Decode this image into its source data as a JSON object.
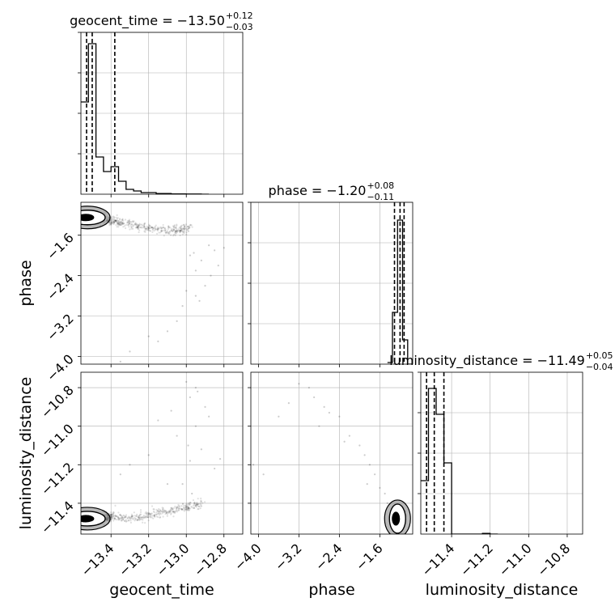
{
  "chart_data": {
    "type": "corner",
    "parameters": [
      "geocent_time",
      "phase",
      "luminosity_distance"
    ],
    "titles": [
      {
        "param": "geocent_time",
        "prefix": "geocent_time = −13.50",
        "plus": "+0.12",
        "minus": "−0.03"
      },
      {
        "param": "phase",
        "prefix": "phase = −1.20",
        "plus": "+0.08",
        "minus": "−0.11"
      },
      {
        "param": "luminosity_distance",
        "prefix": "luminosity_distance = −11.49",
        "plus": "+0.05",
        "minus": "−0.04"
      }
    ],
    "axes": {
      "geocent_time": {
        "lim": [
          -13.56,
          -12.7
        ],
        "ticks": [
          -13.4,
          -13.2,
          -13.0,
          -12.8
        ],
        "tick_labels": [
          "−13.4",
          "−13.2",
          "−13.0",
          "−12.8"
        ]
      },
      "phase": {
        "lim": [
          -4.15,
          -0.95
        ],
        "ticks": [
          -4.0,
          -3.2,
          -2.4,
          -1.6
        ],
        "tick_labels": [
          "−4.0",
          "−3.2",
          "−2.4",
          "−1.6"
        ]
      },
      "luminosity_distance": {
        "lim": [
          -11.56,
          -10.72
        ],
        "ticks": [
          -11.4,
          -11.2,
          -11.0,
          -10.8
        ],
        "tick_labels": [
          "−11.4",
          "−11.2",
          "−11.0",
          "−10.8"
        ]
      }
    },
    "hist_ticks": {
      "geocent_time": [
        0.25,
        0.5,
        0.75,
        1.0
      ],
      "phase": [
        0.25,
        0.5,
        0.75,
        1.0
      ],
      "luminosity_distance": [
        0.25,
        0.5,
        0.75,
        1.0
      ]
    },
    "histograms": {
      "geocent_time": {
        "edges": [
          -13.56,
          -13.52,
          -13.48,
          -13.44,
          -13.4,
          -13.36,
          -13.32,
          -13.28,
          -13.24,
          -13.2,
          -13.16,
          -13.12,
          -13.08,
          -13.04,
          -13.0,
          -12.96,
          -12.92,
          -12.88
        ],
        "counts": [
          0.57,
          0.93,
          0.23,
          0.14,
          0.17,
          0.08,
          0.03,
          0.02,
          0.01,
          0.01,
          0.004,
          0.004,
          0.002,
          0.002,
          0.001,
          0.001,
          0.0
        ]
      },
      "phase": {
        "edges": [
          -1.45,
          -1.35,
          -1.25,
          -1.15,
          -1.05,
          -0.95
        ],
        "counts": [
          0.01,
          0.32,
          0.89,
          0.15,
          0.0
        ]
      },
      "luminosity_distance": {
        "edges": [
          -11.56,
          -11.52,
          -11.48,
          -11.44,
          -11.4,
          -11.36,
          -11.32,
          -11.28,
          -11.24,
          -11.2,
          -11.16
        ],
        "counts": [
          0.33,
          0.9,
          0.74,
          0.44,
          0.0,
          0.0,
          0.0,
          0.0,
          0.004,
          0.0
        ]
      }
    },
    "quantiles": {
      "geocent_time": [
        -13.53,
        -13.5,
        -13.38
      ],
      "phase": [
        -1.31,
        -1.2,
        -1.12
      ],
      "luminosity_distance": [
        -11.53,
        -11.49,
        -11.44
      ]
    },
    "pairs": [
      {
        "x": "geocent_time",
        "y": "phase",
        "ridge": [
          [
            -13.56,
            -1.25
          ],
          [
            -13.45,
            -1.28
          ],
          [
            -13.35,
            -1.35
          ],
          [
            -13.25,
            -1.43
          ],
          [
            -13.15,
            -1.5
          ],
          [
            -13.05,
            -1.5
          ],
          [
            -12.98,
            -1.45
          ]
        ],
        "outliers": [
          [
            -12.98,
            -2.0
          ],
          [
            -12.95,
            -2.3
          ],
          [
            -12.92,
            -2.1
          ],
          [
            -12.9,
            -2.6
          ],
          [
            -12.88,
            -1.8
          ],
          [
            -12.85,
            -1.9
          ],
          [
            -12.8,
            -1.85
          ],
          [
            -13.0,
            -2.7
          ],
          [
            -13.02,
            -3.0
          ],
          [
            -13.1,
            -3.5
          ],
          [
            -13.2,
            -3.6
          ],
          [
            -13.3,
            -3.9
          ],
          [
            -13.35,
            -4.1
          ],
          [
            -12.95,
            -2.8
          ],
          [
            -12.87,
            -2.4
          ],
          [
            -13.05,
            -3.3
          ],
          [
            -12.93,
            -2.9
          ],
          [
            -13.15,
            -3.7
          ],
          [
            -12.83,
            -2.2
          ],
          [
            -12.96,
            -1.95
          ],
          [
            -13.4,
            -4.2
          ]
        ]
      },
      {
        "x": "geocent_time",
        "y": "luminosity_distance",
        "ridge": [
          [
            -13.56,
            -11.48
          ],
          [
            -13.45,
            -11.48
          ],
          [
            -13.4,
            -11.47
          ],
          [
            -13.3,
            -11.48
          ],
          [
            -13.2,
            -11.46
          ],
          [
            -13.1,
            -11.44
          ],
          [
            -13.0,
            -11.42
          ],
          [
            -12.92,
            -11.4
          ]
        ],
        "outliers": [
          [
            -13.0,
            -10.77
          ],
          [
            -12.95,
            -10.8
          ],
          [
            -12.98,
            -10.85
          ],
          [
            -12.9,
            -10.9
          ],
          [
            -13.08,
            -10.92
          ],
          [
            -13.15,
            -10.97
          ],
          [
            -12.88,
            -10.95
          ],
          [
            -12.95,
            -11.0
          ],
          [
            -13.05,
            -11.05
          ],
          [
            -12.99,
            -11.1
          ],
          [
            -12.92,
            -11.12
          ],
          [
            -13.2,
            -11.15
          ],
          [
            -13.3,
            -11.2
          ],
          [
            -13.35,
            -11.25
          ],
          [
            -12.82,
            -11.17
          ],
          [
            -12.85,
            -11.22
          ],
          [
            -13.02,
            -11.3
          ],
          [
            -12.97,
            -11.35
          ],
          [
            -12.94,
            -10.82
          ],
          [
            -13.1,
            -11.3
          ],
          [
            -12.98,
            -11.18
          ]
        ]
      },
      {
        "x": "phase",
        "y": "luminosity_distance",
        "ridge": [
          [
            -1.25,
            -11.48
          ],
          [
            -1.2,
            -11.47
          ],
          [
            -1.15,
            -11.46
          ]
        ],
        "outliers": [
          [
            -3.2,
            -10.78
          ],
          [
            -3.0,
            -10.8
          ],
          [
            -2.9,
            -10.85
          ],
          [
            -2.7,
            -10.9
          ],
          [
            -2.6,
            -10.93
          ],
          [
            -2.4,
            -10.95
          ],
          [
            -2.2,
            -11.05
          ],
          [
            -2.0,
            -11.1
          ],
          [
            -1.9,
            -11.15
          ],
          [
            -1.8,
            -11.2
          ],
          [
            -1.7,
            -11.25
          ],
          [
            -1.5,
            -11.35
          ],
          [
            -1.45,
            -11.4
          ],
          [
            -4.1,
            -11.2
          ],
          [
            -3.9,
            -11.25
          ],
          [
            -3.6,
            -10.95
          ],
          [
            -3.4,
            -10.88
          ],
          [
            -2.8,
            -11.0
          ],
          [
            -1.85,
            -11.3
          ],
          [
            -2.3,
            -11.08
          ],
          [
            -1.6,
            -11.32
          ]
        ]
      }
    ],
    "xlabels": {
      "geocent_time": "geocent_time",
      "phase": "phase",
      "luminosity_distance": "luminosity_distance"
    },
    "ylabels": {
      "phase": "phase",
      "luminosity_distance": "luminosity_distance"
    },
    "grid": true,
    "colors": {
      "line": "#000000",
      "grid": "#b0b0b0",
      "sample": "#000000",
      "contour_fill": "#808080"
    }
  }
}
